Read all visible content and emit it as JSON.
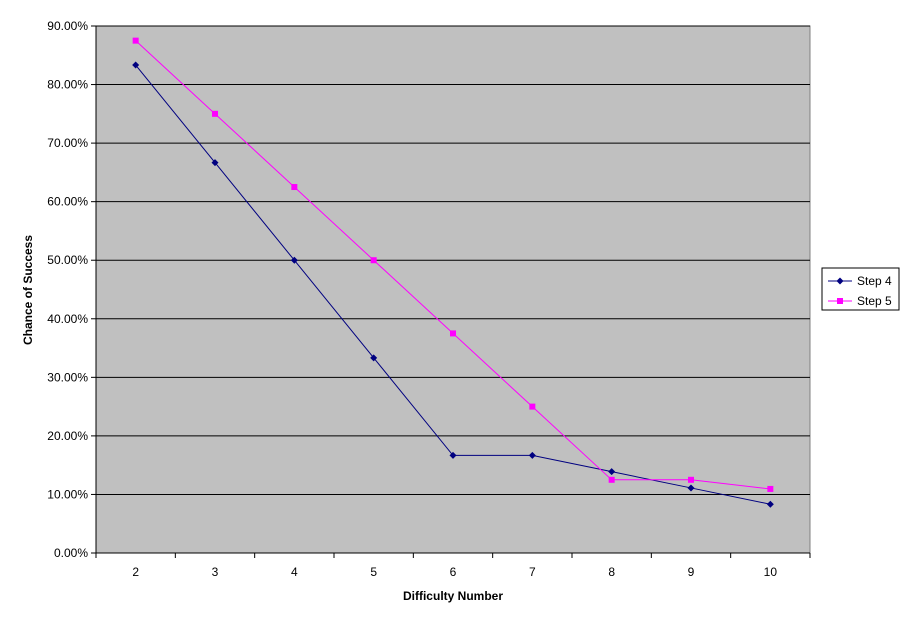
{
  "chart_data": {
    "type": "line",
    "title": "",
    "xlabel": "Difficulty Number",
    "ylabel": "Chance of Success",
    "categories": [
      "2",
      "3",
      "4",
      "5",
      "6",
      "7",
      "8",
      "9",
      "10"
    ],
    "ylim": [
      0,
      0.9
    ],
    "ytick_step": 0.1,
    "ytick_labels": [
      "0.00%",
      "10.00%",
      "20.00%",
      "30.00%",
      "40.00%",
      "50.00%",
      "60.00%",
      "70.00%",
      "80.00%",
      "90.00%"
    ],
    "grid": true,
    "legend_position": "right",
    "plot_background": "#c0c0c0",
    "series": [
      {
        "name": "Step 4",
        "color": "#000080",
        "marker": "diamond",
        "values": [
          0.8333,
          0.6667,
          0.5,
          0.3333,
          0.1667,
          0.1667,
          0.1389,
          0.1111,
          0.0833
        ]
      },
      {
        "name": "Step 5",
        "color": "#ff00ff",
        "marker": "square",
        "values": [
          0.875,
          0.75,
          0.625,
          0.5,
          0.375,
          0.25,
          0.125,
          0.125,
          0.1094
        ]
      }
    ]
  }
}
